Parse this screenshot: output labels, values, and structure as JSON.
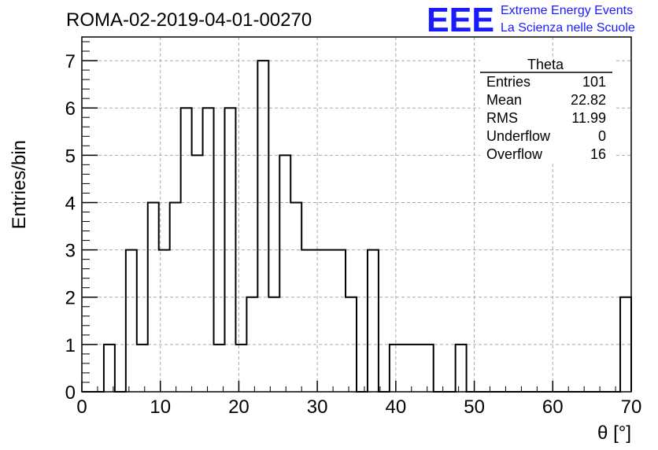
{
  "title": "ROMA-02-2019-04-01-00270",
  "logo": {
    "mark": "EEE",
    "line1": "Extreme Energy Events",
    "line2": "La Scienza nelle Scuole",
    "color": "#1a1aff"
  },
  "stats": {
    "name": "Theta",
    "rows": [
      {
        "label": "Entries",
        "value": "101"
      },
      {
        "label": "Mean",
        "value": "22.82"
      },
      {
        "label": "RMS",
        "value": "11.99"
      },
      {
        "label": "Underflow",
        "value": "0"
      },
      {
        "label": "Overflow",
        "value": "16"
      }
    ]
  },
  "chart_data": {
    "type": "bar",
    "style": "step-histogram",
    "xlabel": "θ [°]",
    "ylabel": "Entries/bin",
    "xlim": [
      0,
      70
    ],
    "ylim": [
      0,
      7.5
    ],
    "bin_width": 1.4,
    "x_ticks": [
      0,
      10,
      20,
      30,
      40,
      50,
      60,
      70
    ],
    "y_ticks": [
      0,
      1,
      2,
      3,
      4,
      5,
      6,
      7
    ],
    "grid": true,
    "values": [
      0,
      0,
      1,
      0,
      3,
      1,
      4,
      3,
      4,
      6,
      5,
      6,
      1,
      6,
      1,
      2,
      7,
      2,
      5,
      4,
      3,
      3,
      3,
      3,
      2,
      0,
      3,
      0,
      1,
      1,
      1,
      1,
      0,
      0,
      1,
      0,
      0,
      0,
      0,
      0,
      0,
      0,
      0,
      0,
      0,
      0,
      0,
      0,
      0,
      2
    ]
  }
}
